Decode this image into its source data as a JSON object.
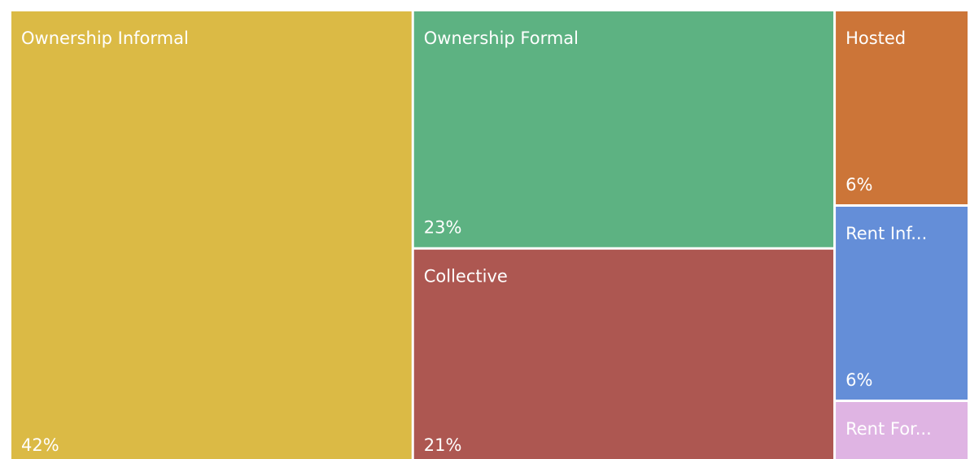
{
  "chart_data": {
    "type": "treemap",
    "categories": [
      "Ownership Informal",
      "Ownership Formal",
      "Collective",
      "Hosted",
      "Rent Inf...",
      "Rent For..."
    ],
    "values": [
      42,
      23,
      21,
      6,
      6,
      2
    ],
    "value_labels": [
      "42%",
      "23%",
      "21%",
      "6%",
      "6%",
      null
    ],
    "colors": [
      "#dbba45",
      "#5db282",
      "#ad5751",
      "#cc7538",
      "#648ed8",
      "#dfb4e3"
    ]
  }
}
